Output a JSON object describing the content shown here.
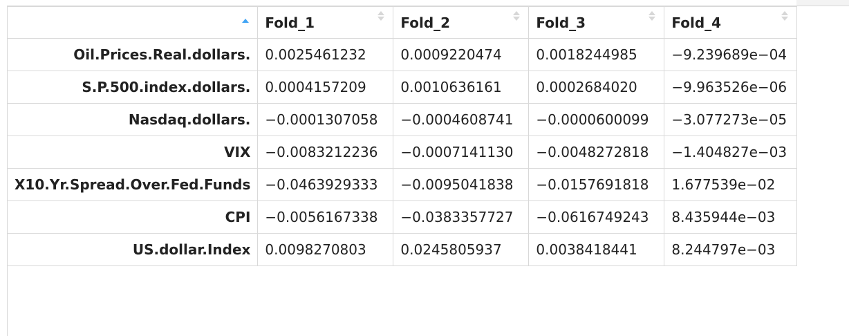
{
  "table": {
    "columns": [
      "Fold_1",
      "Fold_2",
      "Fold_3",
      "Fold_4"
    ],
    "active_sort_color": "#42a5f5",
    "rows": [
      {
        "name": "Oil.Prices.Real.dollars.",
        "values": [
          "0.0025461232",
          "0.0009220474",
          "0.0018244985",
          "-9.239689e-04"
        ]
      },
      {
        "name": "S.P.500.index.dollars.",
        "values": [
          "0.0004157209",
          "0.0010636161",
          "0.0002684020",
          "-9.963526e-06"
        ]
      },
      {
        "name": "Nasdaq.dollars.",
        "values": [
          "-0.0001307058",
          "-0.0004608741",
          "-0.0000600099",
          "-3.077273e-05"
        ]
      },
      {
        "name": "VIX",
        "values": [
          "-0.0083212236",
          "-0.0007141130",
          "-0.0048272818",
          "-1.404827e-03"
        ]
      },
      {
        "name": "X10.Yr.Spread.Over.Fed.Funds",
        "values": [
          "-0.0463929333",
          "-0.0095041838",
          "-0.0157691818",
          "1.677539e-02"
        ]
      },
      {
        "name": "CPI",
        "values": [
          "-0.0056167338",
          "-0.0383357727",
          "-0.0616749243",
          "8.435944e-03"
        ]
      },
      {
        "name": "US.dollar.Index",
        "values": [
          "0.0098270803",
          "0.0245805937",
          "0.0038418441",
          "8.244797e-03"
        ]
      }
    ]
  }
}
